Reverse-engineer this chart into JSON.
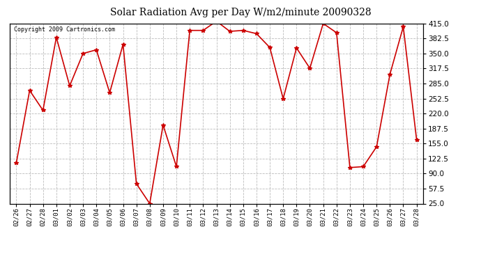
{
  "title": "Solar Radiation Avg per Day W/m2/minute 20090328",
  "copyright": "Copyright 2009 Cartronics.com",
  "dates": [
    "02/26",
    "02/27",
    "02/28",
    "03/01",
    "03/02",
    "03/03",
    "03/04",
    "03/05",
    "03/06",
    "03/07",
    "03/08",
    "03/09",
    "03/10",
    "03/11",
    "03/12",
    "03/13",
    "03/14",
    "03/15",
    "03/16",
    "03/17",
    "03/18",
    "03/19",
    "03/20",
    "03/21",
    "03/22",
    "03/23",
    "03/24",
    "03/25",
    "03/26",
    "03/27",
    "03/28"
  ],
  "values": [
    113,
    270,
    227,
    385,
    280,
    350,
    358,
    265,
    370,
    68,
    25,
    195,
    105,
    400,
    400,
    420,
    398,
    400,
    393,
    363,
    252,
    362,
    318,
    415,
    395,
    103,
    105,
    148,
    305,
    408,
    163
  ],
  "line_color": "#cc0000",
  "marker_color": "#cc0000",
  "bg_color": "#ffffff",
  "grid_color": "#bbbbbb",
  "ylim": [
    25.0,
    415.0
  ],
  "yticks": [
    25.0,
    57.5,
    90.0,
    122.5,
    155.0,
    187.5,
    220.0,
    252.5,
    285.0,
    317.5,
    350.0,
    382.5,
    415.0
  ],
  "figsize": [
    6.9,
    3.75
  ],
  "dpi": 100
}
